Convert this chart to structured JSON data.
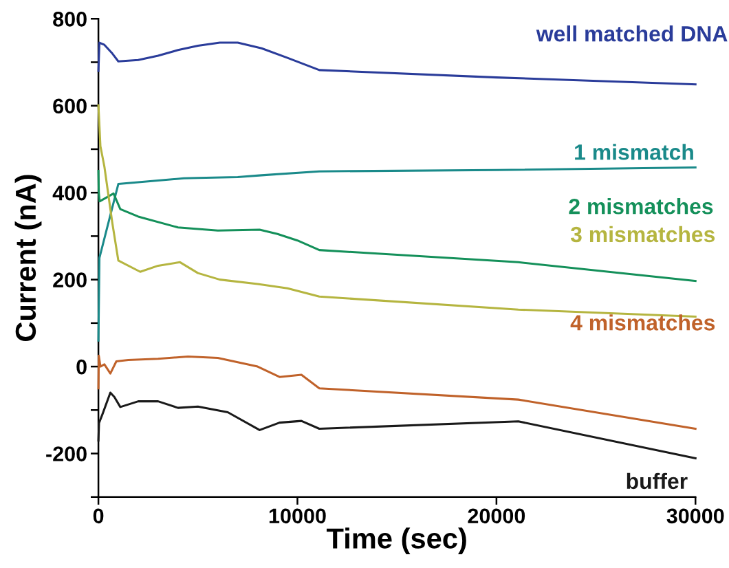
{
  "chart_data": {
    "type": "line",
    "xlabel": "Time (sec)",
    "ylabel": "Current (nA)",
    "xlim": [
      0,
      30000
    ],
    "xticks": [
      0,
      10000,
      20000,
      30000
    ],
    "ylim": [
      -300,
      800
    ],
    "yticks": [
      {
        "value": -300,
        "label": null
      },
      -200,
      {
        "value": -100,
        "label": null
      },
      0,
      {
        "value": 100,
        "label": null
      },
      200,
      {
        "value": 300,
        "label": null
      },
      400,
      {
        "value": 500,
        "label": null
      },
      600,
      {
        "value": 700,
        "label": null
      },
      800
    ],
    "grid": false,
    "legend": false,
    "marker": "none",
    "line_style": "solid",
    "series": [
      {
        "name": "well matched DNA",
        "color": "#2a3c9a",
        "x": [
          0,
          50,
          300,
          700,
          1000,
          2000,
          3000,
          4000,
          5000,
          6100,
          7000,
          8200,
          9500,
          11100,
          20000,
          30000
        ],
        "values": [
          680,
          745,
          740,
          720,
          702,
          705,
          715,
          728,
          738,
          745,
          745,
          732,
          710,
          682,
          665,
          649
        ]
      },
      {
        "name": "1 mismatch",
        "color": "#1a8a8a",
        "x": [
          0,
          50,
          1000,
          3000,
          4300,
          5000,
          7000,
          8200,
          11100,
          20000,
          30000
        ],
        "values": [
          60,
          250,
          420,
          428,
          433,
          434,
          436,
          440,
          449,
          452,
          458
        ]
      },
      {
        "name": "2 mismatches",
        "color": "#14905a",
        "x": [
          0,
          20,
          60,
          760,
          1100,
          2000,
          4000,
          6000,
          8100,
          9000,
          10000,
          11100,
          21100,
          30000
        ],
        "values": [
          450,
          400,
          380,
          398,
          362,
          345,
          320,
          313,
          315,
          305,
          290,
          268,
          240,
          197
        ]
      },
      {
        "name": "3 mismatches",
        "color": "#b5b540",
        "x": [
          0,
          100,
          300,
          700,
          1000,
          2100,
          3000,
          4100,
          5000,
          6100,
          8000,
          9500,
          11100,
          21100,
          30000
        ],
        "values": [
          601,
          507,
          460,
          330,
          244,
          218,
          232,
          240,
          215,
          200,
          190,
          180,
          161,
          131,
          115
        ]
      },
      {
        "name": "4 mismatches",
        "color": "#c0622a",
        "x": [
          0,
          20,
          100,
          300,
          600,
          900,
          1500,
          3000,
          4500,
          6000,
          8000,
          9100,
          10200,
          11100,
          21100,
          30000
        ],
        "values": [
          -50,
          25,
          0,
          5,
          -16,
          12,
          15,
          18,
          23,
          20,
          0,
          -24,
          -19,
          -50,
          -76,
          -143
        ]
      },
      {
        "name": "buffer",
        "color": "#1a1a1a",
        "x": [
          0,
          30,
          200,
          600,
          800,
          1100,
          2000,
          3000,
          4000,
          5000,
          6500,
          8100,
          9100,
          10200,
          11100,
          21100,
          30000
        ],
        "values": [
          -170,
          -130,
          -110,
          -60,
          -70,
          -93,
          -80,
          -80,
          -95,
          -92,
          -105,
          -146,
          -129,
          -125,
          -143,
          -126,
          -211
        ]
      }
    ]
  }
}
